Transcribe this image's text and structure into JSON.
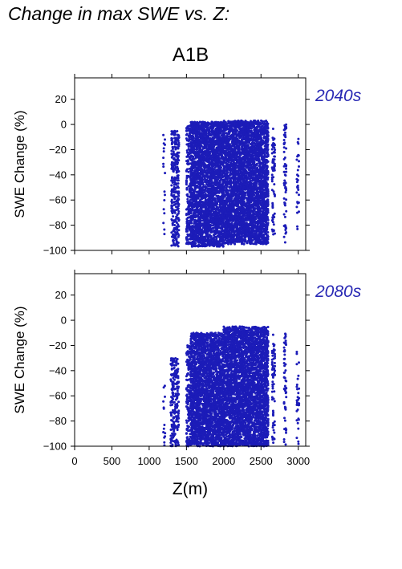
{
  "page_title": "Change in max SWE vs. Z:",
  "scenario": "A1B",
  "colors": {
    "points": "#1c1cb8",
    "period_label": "#2828b4"
  },
  "chart_data": [
    {
      "type": "scatter",
      "period": "2040s",
      "ylabel": "SWE Change (%)",
      "xlabel": "",
      "xlim": [
        0,
        3100
      ],
      "ylim": [
        -100,
        37
      ],
      "xticks": [
        0,
        500,
        1000,
        1500,
        2000,
        2500,
        3000
      ],
      "yticks": [
        -100,
        -80,
        -60,
        -40,
        -20,
        0,
        20
      ],
      "show_x_tick_labels": false,
      "grid": false,
      "clusters": [
        {
          "x": [
            1190,
            1215
          ],
          "y": [
            -95,
            -8
          ],
          "density": 0.35
        },
        {
          "x": [
            1300,
            1400
          ],
          "y": [
            -97,
            -5
          ],
          "density": 0.7
        },
        {
          "x": [
            1500,
            1560
          ],
          "y": [
            -95,
            0
          ],
          "density": 0.7
        },
        {
          "x": [
            1560,
            2000
          ],
          "y": [
            -97,
            2
          ],
          "density": 1.0
        },
        {
          "x": [
            2000,
            2600
          ],
          "y": [
            -95,
            3
          ],
          "density": 1.0
        },
        {
          "x": [
            2650,
            2690
          ],
          "y": [
            -90,
            -2
          ],
          "density": 0.5
        },
        {
          "x": [
            2810,
            2840
          ],
          "y": [
            -95,
            0
          ],
          "density": 0.5
        },
        {
          "x": [
            2980,
            3010
          ],
          "y": [
            -85,
            -5
          ],
          "density": 0.4
        }
      ]
    },
    {
      "type": "scatter",
      "period": "2080s",
      "ylabel": "SWE Change (%)",
      "xlabel": "Z(m)",
      "xlim": [
        0,
        3100
      ],
      "ylim": [
        -100,
        37
      ],
      "xticks": [
        0,
        500,
        1000,
        1500,
        2000,
        2500,
        3000
      ],
      "yticks": [
        -100,
        -80,
        -60,
        -40,
        -20,
        0,
        20
      ],
      "show_x_tick_labels": true,
      "grid": false,
      "clusters": [
        {
          "x": [
            1190,
            1215
          ],
          "y": [
            -100,
            -45
          ],
          "density": 0.35
        },
        {
          "x": [
            1290,
            1400
          ],
          "y": [
            -100,
            -30
          ],
          "density": 0.7
        },
        {
          "x": [
            1500,
            1560
          ],
          "y": [
            -100,
            -20
          ],
          "density": 0.7
        },
        {
          "x": [
            1560,
            2000
          ],
          "y": [
            -100,
            -10
          ],
          "density": 1.0
        },
        {
          "x": [
            2000,
            2600
          ],
          "y": [
            -100,
            -5
          ],
          "density": 1.0
        },
        {
          "x": [
            2650,
            2690
          ],
          "y": [
            -100,
            -10
          ],
          "density": 0.5
        },
        {
          "x": [
            2810,
            2840
          ],
          "y": [
            -100,
            -10
          ],
          "density": 0.5
        },
        {
          "x": [
            2980,
            3010
          ],
          "y": [
            -100,
            -25
          ],
          "density": 0.4
        }
      ]
    }
  ]
}
